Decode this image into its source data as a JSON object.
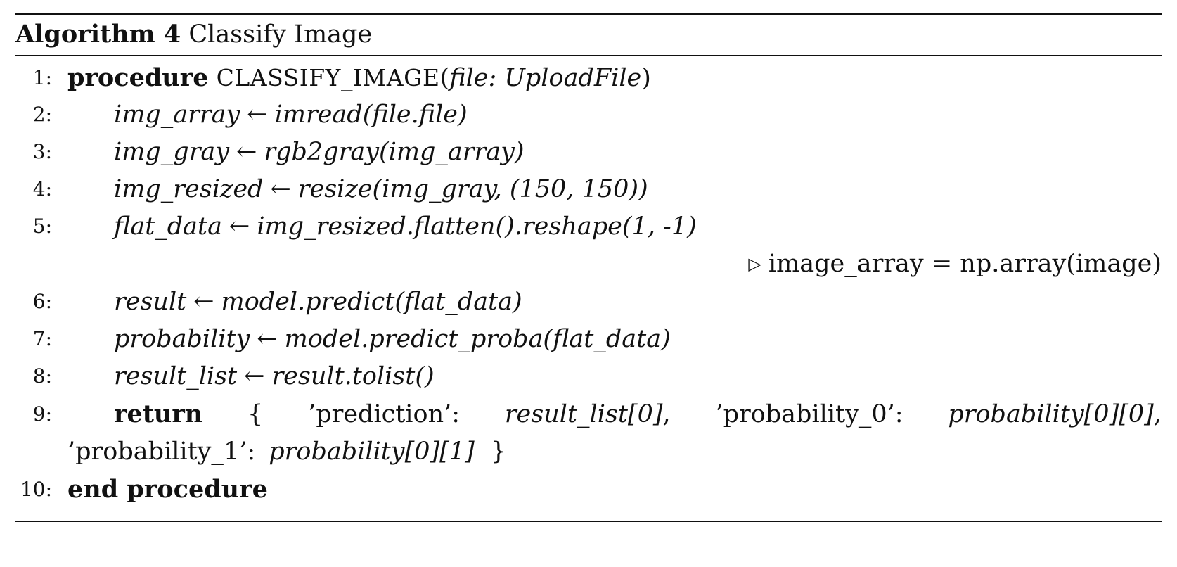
{
  "algorithm": {
    "label": "Algorithm 4",
    "title": "Classify Image",
    "lines": [
      {
        "num": "1:",
        "keyword": "procedure",
        "name": "CLASSIFY_IMAGE",
        "open": "(",
        "param": "file: UploadFile",
        "close": ")"
      },
      {
        "num": "2:",
        "lhs": "img_array",
        "arrow": "←",
        "rhs": "imread(file.file)"
      },
      {
        "num": "3:",
        "lhs": "img_gray",
        "arrow": "←",
        "rhs": "rgb2gray(img_array)"
      },
      {
        "num": "4:",
        "lhs": "img_resized",
        "arrow": "←",
        "rhs": "resize(img_gray, (150, 150))"
      },
      {
        "num": "5:",
        "lhs": "flat_data",
        "arrow": "←",
        "rhs": "img_resized.flatten().reshape(1, -1)"
      },
      {
        "comment_symbol": "▷",
        "comment": "image_array = np.array(image)"
      },
      {
        "num": "6:",
        "lhs": "result",
        "arrow": "←",
        "rhs": "model.predict(flat_data)"
      },
      {
        "num": "7:",
        "lhs": "probability",
        "arrow": "←",
        "rhs": "model.predict_proba(flat_data)"
      },
      {
        "num": "8:",
        "lhs": "result_list",
        "arrow": "←",
        "rhs": "result.tolist()"
      },
      {
        "num": "9:",
        "keyword": "return",
        "brace_open": "{",
        "k1": "’prediction’:",
        "v1": "result_list[0]",
        "sep1": ",",
        "k2": "’probability_0’:",
        "v2": "probability[0][0]",
        "sep2": ","
      },
      {
        "k3": "’probability_1’:",
        "v3": "probability[0][1]",
        "brace_close": "}"
      },
      {
        "num": "10:",
        "keyword": "end procedure"
      }
    ]
  }
}
